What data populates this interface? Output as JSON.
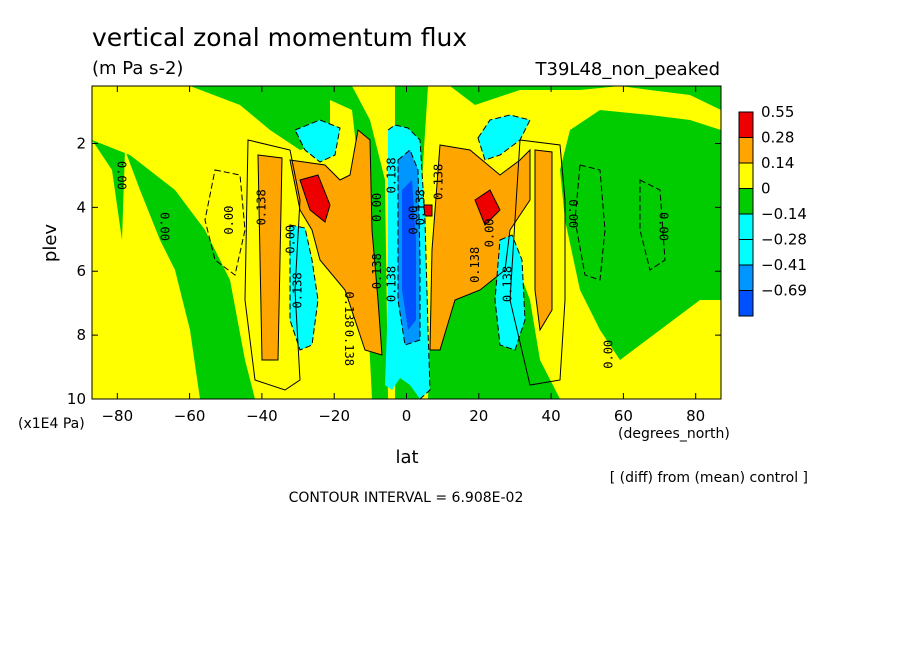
{
  "header": {
    "title": "vertical zonal momentum flux",
    "units": "(m Pa s-2)",
    "run": "T39L48_non_peaked",
    "diff_note": "[ (diff) from (mean) control ]",
    "contour_interval": "CONTOUR INTERVAL = 6.908E-02"
  },
  "colors": {
    "red": "#ee0000",
    "orange": "#ffa500",
    "yellow": "#ffff00",
    "green": "#00cc00",
    "cyan": "#00ffff",
    "midblue": "#0096ff",
    "blue": "#0050ff"
  },
  "chart_data": {
    "type": "heatmap",
    "title": "vertical zonal momentum flux",
    "subtitle": "(m Pa s-2)",
    "xlabel": "lat",
    "xunit": "(degrees_north)",
    "ylabel": "plev",
    "yunit": "(x1E4 Pa)",
    "xlim": [
      -87,
      87
    ],
    "ylim": [
      0.2,
      10
    ],
    "y_inverted": true,
    "xticks": [
      -80,
      -60,
      -40,
      -20,
      0,
      20,
      40,
      60,
      80
    ],
    "yticks": [
      2,
      4,
      6,
      8,
      10
    ],
    "colorbar": {
      "levels": [
        "0.55",
        "0.28",
        "0.14",
        "0",
        "-0.14",
        "-0.28",
        "-0.41",
        "-0.69"
      ],
      "colors": [
        "#ee0000",
        "#ffa500",
        "#ffff00",
        "#00cc00",
        "#00ffff",
        "#00ffff",
        "#0096ff",
        "#0050ff"
      ]
    },
    "contour_labels": [
      {
        "text": "0.00",
        "lat": -80,
        "plev": 3.0,
        "rot": 90
      },
      {
        "text": "0.00",
        "lat": -68,
        "plev": 4.6,
        "rot": 90
      },
      {
        "text": "0.00",
        "lat": -48,
        "plev": 4.4,
        "rot": -90
      },
      {
        "text": "0.138",
        "lat": -39,
        "plev": 4.0,
        "rot": -90
      },
      {
        "text": "0.00",
        "lat": -31,
        "plev": 5.0,
        "rot": -90
      },
      {
        "text": "0.138",
        "lat": -29,
        "plev": 6.6,
        "rot": -90
      },
      {
        "text": "0.138",
        "lat": -17,
        "plev": 7.2,
        "rot": 90
      },
      {
        "text": "0.138",
        "lat": -17,
        "plev": 8.4,
        "rot": 90
      },
      {
        "text": "0.138",
        "lat": -7,
        "plev": 6.0,
        "rot": -90
      },
      {
        "text": "0.00",
        "lat": -7,
        "plev": 4.0,
        "rot": -90
      },
      {
        "text": "0.138",
        "lat": -3,
        "plev": 6.4,
        "rot": -90
      },
      {
        "text": "0.138",
        "lat": -3,
        "plev": 3.0,
        "rot": -90
      },
      {
        "text": "0.00",
        "lat": 3,
        "plev": 4.4,
        "rot": -90
      },
      {
        "text": "0.138",
        "lat": 5,
        "plev": 4.0,
        "rot": -90
      },
      {
        "text": "0.138",
        "lat": 10,
        "plev": 3.2,
        "rot": -90
      },
      {
        "text": "0.138",
        "lat": 20,
        "plev": 5.8,
        "rot": -90
      },
      {
        "text": "0.00",
        "lat": 24,
        "plev": 4.8,
        "rot": -90
      },
      {
        "text": "0.138",
        "lat": 29,
        "plev": 6.4,
        "rot": -90
      },
      {
        "text": "0.00",
        "lat": 45,
        "plev": 4.2,
        "rot": 90
      },
      {
        "text": "0.00",
        "lat": 70,
        "plev": 4.6,
        "rot": 90
      },
      {
        "text": "0.00",
        "lat": 57,
        "plev": 8.6,
        "rot": -90
      }
    ]
  }
}
